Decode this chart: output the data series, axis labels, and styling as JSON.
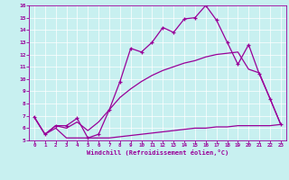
{
  "xlabel": "Windchill (Refroidissement éolien,°C)",
  "bg_color": "#c8f0f0",
  "line_color": "#990099",
  "xlim": [
    -0.5,
    23.5
  ],
  "ylim": [
    5,
    16
  ],
  "xticks": [
    0,
    1,
    2,
    3,
    4,
    5,
    6,
    7,
    8,
    9,
    10,
    11,
    12,
    13,
    14,
    15,
    16,
    17,
    18,
    19,
    20,
    21,
    22,
    23
  ],
  "yticks": [
    5,
    6,
    7,
    8,
    9,
    10,
    11,
    12,
    13,
    14,
    15,
    16
  ],
  "line1_x": [
    0,
    1,
    2,
    3,
    4,
    5,
    6,
    7,
    8,
    9,
    10,
    11,
    12,
    13,
    14,
    15,
    16,
    17,
    18,
    19,
    20,
    21,
    22,
    23
  ],
  "line1_y": [
    6.9,
    5.5,
    6.2,
    6.2,
    6.8,
    5.2,
    5.5,
    7.5,
    9.8,
    12.5,
    12.2,
    13.0,
    14.2,
    13.8,
    14.9,
    15.0,
    16.0,
    14.8,
    13.0,
    11.2,
    12.8,
    10.4,
    8.4,
    6.3
  ],
  "line2_x": [
    0,
    1,
    2,
    3,
    4,
    5,
    6,
    7,
    8,
    9,
    10,
    11,
    12,
    13,
    14,
    15,
    16,
    17,
    18,
    19,
    20,
    21,
    22,
    23
  ],
  "line2_y": [
    6.9,
    5.5,
    6.2,
    6.0,
    6.5,
    5.8,
    6.5,
    7.5,
    8.5,
    9.2,
    9.8,
    10.3,
    10.7,
    11.0,
    11.3,
    11.5,
    11.8,
    12.0,
    12.1,
    12.2,
    10.8,
    10.5,
    8.4,
    6.3
  ],
  "line3_x": [
    0,
    1,
    2,
    3,
    4,
    5,
    6,
    7,
    8,
    9,
    10,
    11,
    12,
    13,
    14,
    15,
    16,
    17,
    18,
    19,
    20,
    21,
    22,
    23
  ],
  "line3_y": [
    6.9,
    5.5,
    6.0,
    5.2,
    5.2,
    5.2,
    5.2,
    5.2,
    5.3,
    5.4,
    5.5,
    5.6,
    5.7,
    5.8,
    5.9,
    6.0,
    6.0,
    6.1,
    6.1,
    6.2,
    6.2,
    6.2,
    6.2,
    6.3
  ]
}
